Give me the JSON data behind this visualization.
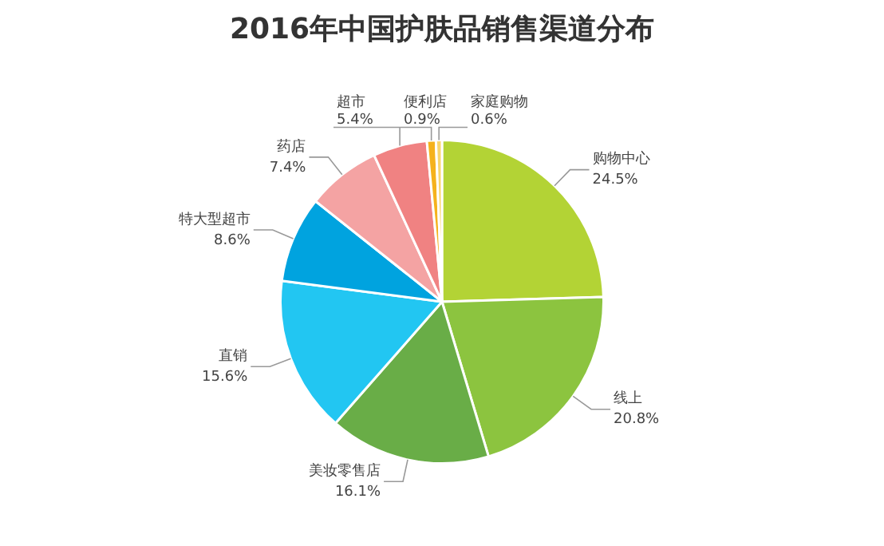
{
  "chart_data": {
    "type": "pie",
    "title": "2016年中国护肤品销售渠道分布",
    "categories": [
      "购物中心",
      "线上",
      "美妆零售店",
      "直销",
      "特大型超市",
      "药店",
      "超市",
      "便利店",
      "家庭购物"
    ],
    "values": [
      24.5,
      20.8,
      16.1,
      15.6,
      8.6,
      7.4,
      5.4,
      0.9,
      0.6
    ],
    "colors": [
      "#b3d335",
      "#8cc43f",
      "#69ad47",
      "#22c6f2",
      "#00a3df",
      "#f4a3a3",
      "#f08282",
      "#f5b21c",
      "#f8d66e"
    ],
    "value_labels": [
      "24.5%",
      "20.8%",
      "16.1%",
      "15.6%",
      "8.6%",
      "7.4%",
      "5.4%",
      "0.9%",
      "0.6%"
    ]
  }
}
